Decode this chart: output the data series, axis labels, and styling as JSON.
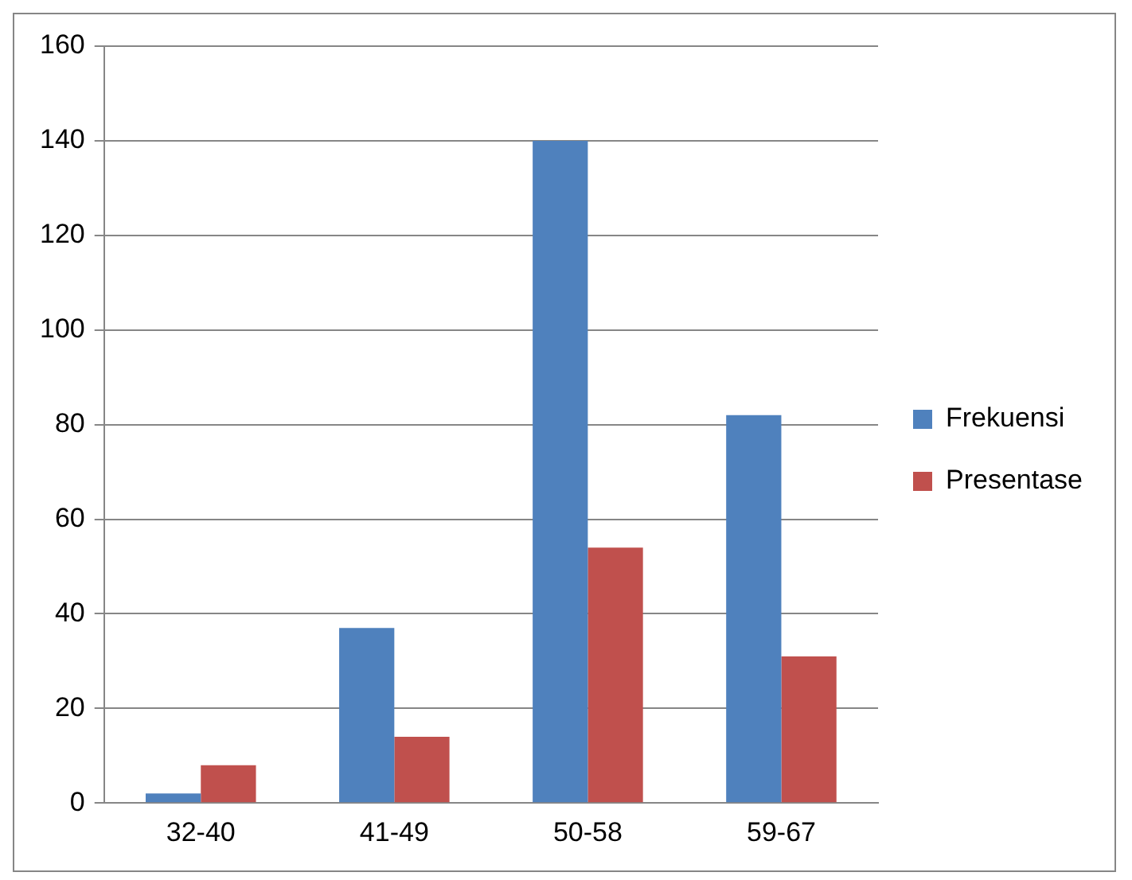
{
  "chart_data": {
    "type": "bar",
    "categories": [
      "32-40",
      "41-49",
      "50-58",
      "59-67"
    ],
    "series": [
      {
        "name": "Frekuensi",
        "color": "#4f81bd",
        "values": [
          2,
          37,
          140,
          82
        ]
      },
      {
        "name": "Presentase",
        "color": "#c0504d",
        "values": [
          8,
          14,
          54,
          31
        ]
      }
    ],
    "ylim": [
      0,
      160
    ],
    "yticks": [
      0,
      20,
      40,
      60,
      80,
      100,
      120,
      140,
      160
    ],
    "grid": "y",
    "legend": "right"
  }
}
